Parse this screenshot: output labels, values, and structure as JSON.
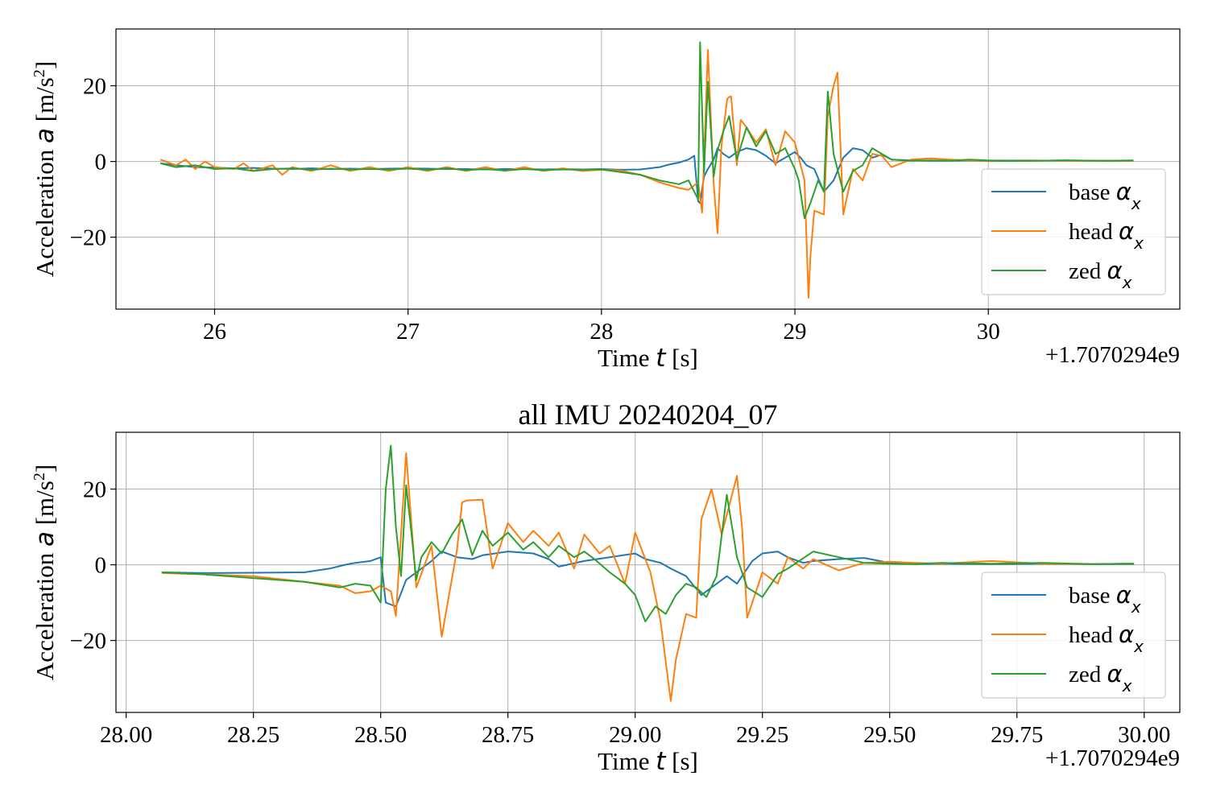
{
  "chart_data": [
    {
      "type": "line",
      "title": "",
      "xlabel_prefix": "Time",
      "xlabel_var": "t",
      "xlabel_unit": "[s]",
      "ylabel_prefix": "Acceleration",
      "ylabel_var": "a",
      "ylabel_unit": "[m/s",
      "ylabel_unit_sup": "2",
      "ylabel_unit_close": "]",
      "x_offset_label": "+1.7070294e9",
      "xlim": [
        25.49,
        30.99
      ],
      "ylim": [
        -39,
        35
      ],
      "xticks": [
        26,
        27,
        28,
        29,
        30
      ],
      "xtick_labels": [
        "26",
        "27",
        "28",
        "29",
        "30"
      ],
      "yticks": [
        20,
        0,
        -20
      ],
      "ytick_labels": [
        "20",
        "0",
        "−20"
      ],
      "grid": true,
      "legend_position": "lower right",
      "series": [
        {
          "name": "base",
          "name_var": "α",
          "name_sub": "x",
          "color": "#1f77b4",
          "x": [
            25.72,
            25.8,
            25.9,
            26.0,
            26.1,
            26.2,
            26.3,
            26.4,
            26.5,
            26.6,
            26.7,
            26.8,
            26.9,
            27.0,
            27.1,
            27.2,
            27.3,
            27.4,
            27.5,
            27.6,
            27.7,
            27.8,
            27.9,
            28.0,
            28.1,
            28.2,
            28.3,
            28.35,
            28.4,
            28.45,
            28.48,
            28.5,
            28.51,
            28.53,
            28.55,
            28.58,
            28.6,
            28.63,
            28.66,
            28.7,
            28.75,
            28.8,
            28.85,
            28.9,
            28.95,
            29.0,
            29.03,
            29.06,
            29.1,
            29.15,
            29.2,
            29.25,
            29.3,
            29.35,
            29.4,
            29.45,
            29.5,
            29.6,
            29.7,
            29.8,
            29.9,
            30.0,
            30.2,
            30.4,
            30.6,
            30.75
          ],
          "y": [
            -0.5,
            -1.0,
            -1.5,
            -1.6,
            -1.8,
            -1.7,
            -1.9,
            -2.0,
            -1.8,
            -2.0,
            -1.9,
            -2.0,
            -1.9,
            -1.8,
            -1.9,
            -2.0,
            -2.0,
            -2.1,
            -2.0,
            -2.0,
            -2.1,
            -2.0,
            -2.1,
            -2.0,
            -2.2,
            -2.1,
            -1.5,
            -0.8,
            -0.3,
            0.5,
            1.5,
            -10.5,
            -11.0,
            -4.0,
            -2.0,
            0.5,
            3.5,
            2.0,
            1.0,
            2.5,
            3.5,
            3.0,
            1.5,
            -0.5,
            1.0,
            2.5,
            1.0,
            -1.0,
            -2.0,
            -8.0,
            -5.0,
            1.0,
            3.5,
            3.0,
            1.0,
            1.8,
            0.5,
            0.3,
            0.2,
            0.2,
            0.3,
            0.1,
            0.2,
            0.3,
            0.2,
            0.2
          ]
        },
        {
          "name": "head",
          "name_var": "α",
          "name_sub": "x",
          "color": "#ff7f0e",
          "x": [
            25.72,
            25.8,
            25.85,
            25.9,
            25.95,
            26.0,
            26.1,
            26.15,
            26.2,
            26.3,
            26.35,
            26.4,
            26.5,
            26.6,
            26.7,
            26.8,
            26.9,
            27.0,
            27.1,
            27.2,
            27.3,
            27.4,
            27.5,
            27.6,
            27.7,
            27.8,
            27.9,
            28.0,
            28.1,
            28.2,
            28.3,
            28.4,
            28.45,
            28.5,
            28.52,
            28.55,
            28.58,
            28.6,
            28.62,
            28.65,
            28.66,
            28.67,
            28.7,
            28.72,
            28.75,
            28.8,
            28.85,
            28.9,
            28.95,
            29.0,
            29.05,
            29.07,
            29.08,
            29.1,
            29.15,
            29.17,
            29.2,
            29.22,
            29.25,
            29.3,
            29.35,
            29.4,
            29.45,
            29.5,
            29.6,
            29.7,
            29.8,
            29.9,
            30.0,
            30.2,
            30.4,
            30.6,
            30.75
          ],
          "y": [
            0.5,
            -1.0,
            0.5,
            -2.0,
            0.0,
            -1.5,
            -2.0,
            -0.5,
            -2.5,
            -1.0,
            -3.5,
            -1.5,
            -2.5,
            -1.0,
            -2.5,
            -1.5,
            -2.5,
            -1.5,
            -2.5,
            -1.5,
            -2.5,
            -1.5,
            -2.5,
            -1.5,
            -2.5,
            -1.8,
            -2.5,
            -2.2,
            -2.4,
            -3.5,
            -5.5,
            -7.0,
            -7.5,
            -5.5,
            -13.5,
            29.5,
            -6.0,
            -19.0,
            4.0,
            16.5,
            17.0,
            17.2,
            -1.0,
            11.0,
            9.0,
            5.0,
            8.5,
            -1.0,
            8.0,
            5.0,
            -5.0,
            -36.0,
            -25.0,
            -13.0,
            -14.0,
            12.0,
            20.0,
            23.5,
            -14.0,
            -2.0,
            -5.0,
            2.0,
            1.5,
            -1.5,
            0.5,
            0.8,
            0.5,
            0.3,
            0.2,
            0.3,
            0.2,
            0.2,
            0.2
          ]
        },
        {
          "name": "zed",
          "name_var": "α",
          "name_sub": "x",
          "color": "#2ca02c",
          "x": [
            25.72,
            25.8,
            25.9,
            26.0,
            26.1,
            26.2,
            26.3,
            26.4,
            26.5,
            26.6,
            26.7,
            26.8,
            26.9,
            27.0,
            27.1,
            27.2,
            27.3,
            27.4,
            27.5,
            27.6,
            27.7,
            27.8,
            27.9,
            28.0,
            28.1,
            28.2,
            28.3,
            28.4,
            28.45,
            28.5,
            28.51,
            28.53,
            28.55,
            28.58,
            28.6,
            28.63,
            28.66,
            28.7,
            28.75,
            28.8,
            28.85,
            28.9,
            28.95,
            29.0,
            29.02,
            29.05,
            29.08,
            29.12,
            29.15,
            29.17,
            29.2,
            29.25,
            29.3,
            29.35,
            29.4,
            29.45,
            29.5,
            29.6,
            29.7,
            29.8,
            29.9,
            30.0,
            30.2,
            30.4,
            30.6,
            30.75
          ],
          "y": [
            -0.5,
            -1.5,
            -1.0,
            -2.0,
            -1.8,
            -2.5,
            -2.0,
            -1.8,
            -2.2,
            -1.9,
            -2.1,
            -2.0,
            -2.1,
            -1.9,
            -2.2,
            -1.8,
            -2.3,
            -2.0,
            -2.4,
            -2.0,
            -2.3,
            -2.1,
            -2.2,
            -2.1,
            -2.8,
            -3.5,
            -5.0,
            -6.0,
            -5.0,
            -10.0,
            31.5,
            -3.0,
            21.0,
            -4.0,
            3.0,
            8.0,
            12.0,
            0.5,
            9.0,
            4.0,
            8.0,
            2.0,
            3.5,
            -2.0,
            -5.0,
            -15.0,
            -11.0,
            -5.0,
            -8.0,
            18.5,
            2.0,
            -8.0,
            -2.5,
            -1.0,
            3.5,
            2.0,
            0.5,
            0.2,
            0.3,
            0.2,
            0.5,
            0.3,
            0.2,
            0.3,
            0.2,
            0.3
          ]
        }
      ]
    },
    {
      "type": "line",
      "title": "all IMU 20240204_07",
      "xlabel_prefix": "Time",
      "xlabel_var": "t",
      "xlabel_unit": "[s]",
      "ylabel_prefix": "Acceleration",
      "ylabel_var": "a",
      "ylabel_unit": "[m/s",
      "ylabel_unit_sup": "2",
      "ylabel_unit_close": "]",
      "x_offset_label": "+1.7070294e9",
      "xlim": [
        27.98,
        30.07
      ],
      "ylim": [
        -39,
        35
      ],
      "xticks": [
        28.0,
        28.25,
        28.5,
        28.75,
        29.0,
        29.25,
        29.5,
        29.75,
        30.0
      ],
      "xtick_labels": [
        "28.00",
        "28.25",
        "28.50",
        "28.75",
        "29.00",
        "29.25",
        "29.50",
        "29.75",
        "30.00"
      ],
      "yticks": [
        20,
        0,
        -20
      ],
      "ytick_labels": [
        "20",
        "0",
        "−20"
      ],
      "grid": true,
      "legend_position": "lower right",
      "series": [
        {
          "name": "base",
          "name_var": "α",
          "name_sub": "x",
          "color": "#1f77b4",
          "x": [
            28.07,
            28.15,
            28.25,
            28.35,
            28.4,
            28.43,
            28.45,
            28.48,
            28.5,
            28.51,
            28.52,
            28.53,
            28.55,
            28.57,
            28.6,
            28.62,
            28.65,
            28.68,
            28.7,
            28.75,
            28.8,
            28.83,
            28.85,
            28.9,
            28.95,
            29.0,
            29.02,
            29.05,
            29.07,
            29.1,
            29.13,
            29.15,
            29.18,
            29.2,
            29.23,
            29.25,
            29.28,
            29.3,
            29.33,
            29.35,
            29.4,
            29.45,
            29.5,
            29.55,
            29.6,
            29.7,
            29.8,
            29.9,
            29.98
          ],
          "y": [
            -2.0,
            -2.2,
            -2.1,
            -2.0,
            -1.0,
            0.0,
            0.5,
            1.0,
            2.0,
            -10.0,
            -10.5,
            -11.0,
            -4.0,
            -2.0,
            1.0,
            3.5,
            2.0,
            1.5,
            2.5,
            3.5,
            3.0,
            1.5,
            -0.5,
            1.0,
            2.0,
            3.0,
            1.5,
            0.5,
            -1.0,
            -3.0,
            -8.0,
            -6.0,
            -3.0,
            -5.0,
            1.0,
            3.0,
            3.5,
            2.0,
            0.5,
            1.0,
            1.5,
            1.8,
            0.5,
            0.2,
            0.3,
            0.2,
            0.3,
            0.2,
            0.2
          ]
        },
        {
          "name": "head",
          "name_var": "α",
          "name_sub": "x",
          "color": "#ff7f0e",
          "x": [
            28.07,
            28.15,
            28.25,
            28.35,
            28.42,
            28.45,
            28.48,
            28.5,
            28.52,
            28.53,
            28.55,
            28.57,
            28.6,
            28.62,
            28.65,
            28.66,
            28.67,
            28.7,
            28.72,
            28.75,
            28.78,
            28.8,
            28.83,
            28.85,
            28.88,
            28.9,
            28.93,
            28.95,
            28.98,
            29.0,
            29.03,
            29.05,
            29.07,
            29.08,
            29.1,
            29.12,
            29.13,
            29.15,
            29.17,
            29.2,
            29.21,
            29.22,
            29.25,
            29.28,
            29.3,
            29.33,
            29.35,
            29.4,
            29.45,
            29.5,
            29.55,
            29.6,
            29.7,
            29.8,
            29.9,
            29.98
          ],
          "y": [
            -2.2,
            -2.5,
            -3.0,
            -4.5,
            -5.5,
            -7.5,
            -7.0,
            -5.5,
            -7.0,
            -13.5,
            29.5,
            -6.0,
            5.0,
            -19.0,
            4.0,
            16.5,
            17.0,
            17.2,
            -1.0,
            11.0,
            6.0,
            9.0,
            5.0,
            8.5,
            -1.0,
            8.0,
            3.0,
            5.0,
            -5.0,
            8.5,
            -2.0,
            -15.0,
            -36.0,
            -25.0,
            -13.0,
            -14.0,
            12.0,
            20.0,
            8.0,
            23.5,
            10.0,
            -14.0,
            -2.0,
            -5.0,
            2.0,
            -1.0,
            1.5,
            -1.5,
            0.5,
            0.8,
            0.5,
            0.3,
            1.0,
            0.3,
            0.2,
            0.3
          ]
        },
        {
          "name": "zed",
          "name_var": "α",
          "name_sub": "x",
          "color": "#2ca02c",
          "x": [
            28.07,
            28.15,
            28.25,
            28.35,
            28.42,
            28.45,
            28.48,
            28.5,
            28.51,
            28.52,
            28.53,
            28.54,
            28.55,
            28.56,
            28.57,
            28.58,
            28.6,
            28.62,
            28.64,
            28.66,
            28.68,
            28.7,
            28.72,
            28.75,
            28.78,
            28.8,
            28.83,
            28.85,
            28.88,
            28.9,
            28.92,
            28.95,
            28.98,
            29.0,
            29.02,
            29.04,
            29.06,
            29.08,
            29.1,
            29.12,
            29.14,
            29.16,
            29.18,
            29.2,
            29.22,
            29.25,
            29.28,
            29.3,
            29.35,
            29.4,
            29.45,
            29.5,
            29.55,
            29.6,
            29.7,
            29.8,
            29.9,
            29.98
          ],
          "y": [
            -2.0,
            -2.5,
            -3.5,
            -4.5,
            -6.0,
            -5.0,
            -5.5,
            -10.0,
            20.0,
            31.5,
            10.0,
            -3.0,
            21.0,
            9.0,
            -4.0,
            2.0,
            6.0,
            3.0,
            8.0,
            12.0,
            2.5,
            9.0,
            5.0,
            8.5,
            4.0,
            6.0,
            2.0,
            5.0,
            2.0,
            3.5,
            1.5,
            -2.0,
            -5.0,
            -8.0,
            -15.0,
            -11.0,
            -13.0,
            -8.0,
            -5.0,
            -6.0,
            -8.5,
            -3.0,
            18.5,
            2.0,
            -6.0,
            -8.5,
            -2.5,
            -1.0,
            3.5,
            2.0,
            0.5,
            0.3,
            0.2,
            0.5,
            0.3,
            0.5,
            0.2,
            0.3
          ]
        }
      ]
    }
  ]
}
